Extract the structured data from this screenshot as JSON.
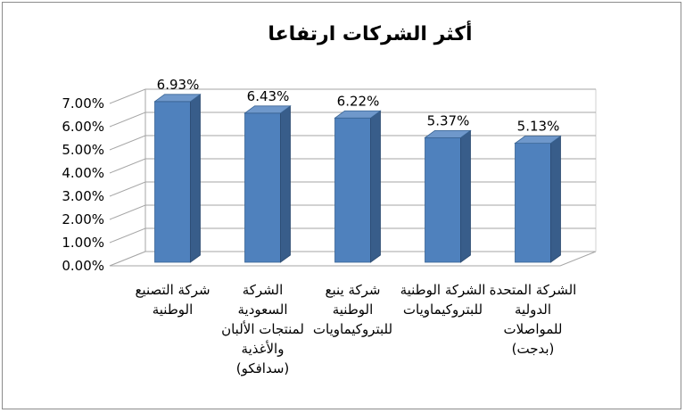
{
  "chart_data": {
    "type": "bar",
    "title": "أكثر الشركات ارتفاعا",
    "xlabel": "",
    "ylabel": "",
    "ylim": [
      0,
      7
    ],
    "y_tick_labels": [
      "0.00%",
      "1.00%",
      "2.00%",
      "3.00%",
      "4.00%",
      "5.00%",
      "6.00%",
      "7.00%"
    ],
    "y_ticks": [
      0,
      1,
      2,
      3,
      4,
      5,
      6,
      7
    ],
    "grid": true,
    "style": "3d-column",
    "bar_color": "#4f81bd",
    "categories": [
      [
        "شركة التصنيع",
        "الوطنية"
      ],
      [
        "الشركة",
        "السعودية",
        "لمنتجات الألبان",
        "والأغذية",
        "(سدافكو)"
      ],
      [
        "شركة ينبع",
        "الوطنية",
        "للبتروكيماويات"
      ],
      [
        "الشركة الوطنية",
        "للبتروكيماويات"
      ],
      [
        "الشركة المتحدة",
        "الدولية",
        "للمواصلات",
        "(بدجت)"
      ]
    ],
    "values": [
      6.93,
      6.43,
      6.22,
      5.37,
      5.13
    ],
    "data_labels": [
      "6.93%",
      "6.43%",
      "6.22%",
      "5.37%",
      "5.13%"
    ]
  }
}
